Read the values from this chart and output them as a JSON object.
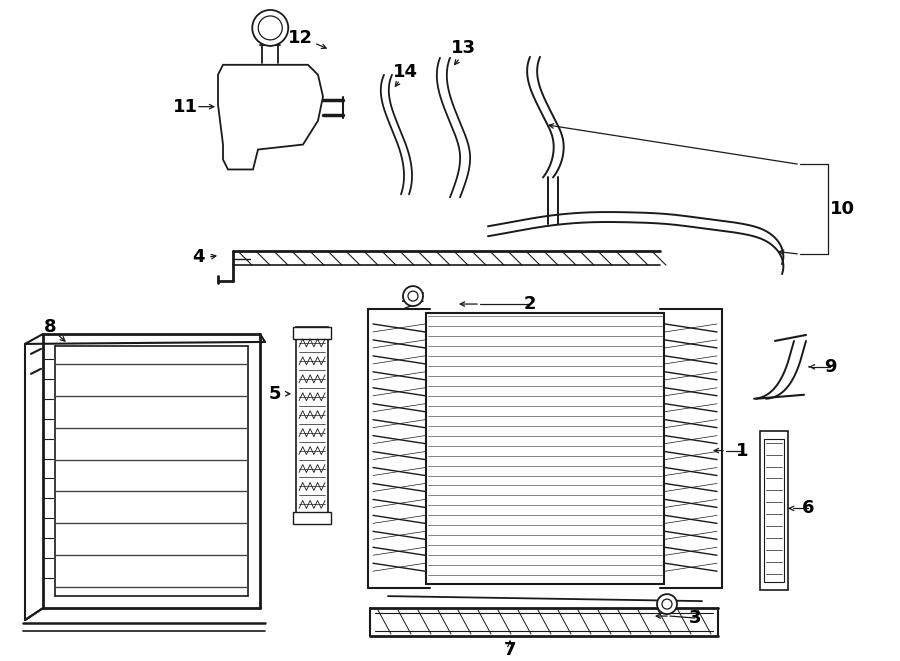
{
  "bg_color": "#ffffff",
  "lc": "#1a1a1a",
  "fig_width": 9.0,
  "fig_height": 6.61,
  "dpi": 100
}
